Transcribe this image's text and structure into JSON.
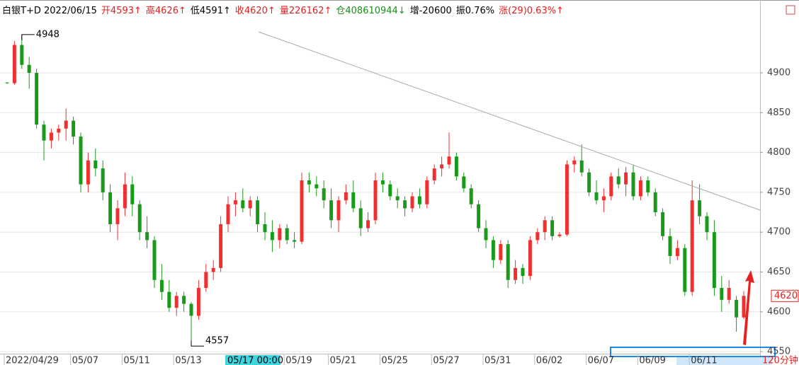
{
  "chart_data": {
    "type": "candlestick",
    "header": [
      {
        "text": "白银T+D 2022/06/15",
        "color": "#000000"
      },
      {
        "text": "开4593↑",
        "color": "#e02020"
      },
      {
        "text": "高4626↑",
        "color": "#e02020"
      },
      {
        "text": "低4591↑",
        "color": "#000000"
      },
      {
        "text": "收4620↑",
        "color": "#e02020"
      },
      {
        "text": "量226162↑",
        "color": "#e02020"
      },
      {
        "text": "仓408610944↓",
        "color": "#1a8f1a"
      },
      {
        "text": "增-20600",
        "color": "#000000"
      },
      {
        "text": "振0.76%",
        "color": "#000000"
      },
      {
        "text": "涨(29)0.63%↑",
        "color": "#e02020"
      }
    ],
    "cursor_label": "05/17 00:00",
    "period": "120分钟",
    "up_color": "#f03030",
    "down_color": "#1a9a1a",
    "ylim": [
      4543,
      4987
    ],
    "yticks": [
      4550,
      4600,
      4650,
      4700,
      4750,
      4800,
      4850,
      4900
    ],
    "grid": true,
    "high_label": 4948,
    "low_label": 4557,
    "last_price": 4620,
    "categories": [
      "2022/04/29",
      null,
      null,
      null,
      null,
      null,
      null,
      null,
      null,
      "05/07",
      null,
      null,
      null,
      null,
      null,
      null,
      "05/11",
      null,
      null,
      null,
      null,
      null,
      null,
      "05/13",
      null,
      null,
      null,
      null,
      null,
      null,
      null,
      null,
      null,
      null,
      null,
      null,
      null,
      null,
      "05/19",
      null,
      null,
      null,
      null,
      null,
      "05/21",
      null,
      null,
      null,
      null,
      null,
      null,
      "05/25",
      null,
      null,
      null,
      null,
      null,
      null,
      "05/27",
      null,
      null,
      null,
      null,
      null,
      null,
      "05/31",
      null,
      null,
      null,
      null,
      null,
      null,
      "06/02",
      null,
      null,
      null,
      null,
      null,
      null,
      "06/07",
      null,
      null,
      null,
      null,
      null,
      null,
      "06/09",
      null,
      null,
      null,
      null,
      null,
      null,
      "06/11",
      null,
      null,
      null,
      null,
      null,
      null,
      null
    ],
    "ohlc": [
      [
        4888,
        4888,
        4886,
        4887
      ],
      [
        4887,
        4940,
        4885,
        4935
      ],
      [
        4935,
        4948,
        4905,
        4910
      ],
      [
        4910,
        4920,
        4880,
        4900
      ],
      [
        4900,
        4905,
        4830,
        4835
      ],
      [
        4835,
        4840,
        4790,
        4815
      ],
      [
        4815,
        4830,
        4805,
        4825
      ],
      [
        4825,
        4835,
        4815,
        4830
      ],
      [
        4830,
        4855,
        4815,
        4840
      ],
      [
        4840,
        4845,
        4810,
        4820
      ],
      [
        4820,
        4825,
        4750,
        4760
      ],
      [
        4760,
        4800,
        4750,
        4790
      ],
      [
        4790,
        4805,
        4770,
        4780
      ],
      [
        4780,
        4790,
        4740,
        4750
      ],
      [
        4750,
        4760,
        4700,
        4710
      ],
      [
        4710,
        4740,
        4690,
        4730
      ],
      [
        4730,
        4775,
        4720,
        4760
      ],
      [
        4760,
        4770,
        4720,
        4735
      ],
      [
        4735,
        4740,
        4690,
        4700
      ],
      [
        4700,
        4720,
        4680,
        4690
      ],
      [
        4690,
        4695,
        4630,
        4640
      ],
      [
        4640,
        4660,
        4615,
        4625
      ],
      [
        4625,
        4640,
        4600,
        4605
      ],
      [
        4605,
        4625,
        4595,
        4620
      ],
      [
        4620,
        4625,
        4600,
        4610
      ],
      [
        4610,
        4612,
        4557,
        4595
      ],
      [
        4595,
        4640,
        4590,
        4630
      ],
      [
        4630,
        4660,
        4625,
        4650
      ],
      [
        4650,
        4665,
        4640,
        4655
      ],
      [
        4655,
        4720,
        4650,
        4710
      ],
      [
        4710,
        4745,
        4700,
        4735
      ],
      [
        4735,
        4750,
        4720,
        4740
      ],
      [
        4740,
        4755,
        4725,
        4730
      ],
      [
        4730,
        4745,
        4720,
        4740
      ],
      [
        4740,
        4745,
        4700,
        4710
      ],
      [
        4710,
        4725,
        4690,
        4700
      ],
      [
        4700,
        4715,
        4675,
        4690
      ],
      [
        4690,
        4710,
        4680,
        4705
      ],
      [
        4705,
        4710,
        4685,
        4690
      ],
      [
        4690,
        4700,
        4680,
        4688
      ],
      [
        4688,
        4775,
        4685,
        4765
      ],
      [
        4765,
        4775,
        4750,
        4760
      ],
      [
        4760,
        4770,
        4745,
        4755
      ],
      [
        4755,
        4765,
        4730,
        4740
      ],
      [
        4740,
        4755,
        4705,
        4715
      ],
      [
        4715,
        4745,
        4700,
        4740
      ],
      [
        4740,
        4760,
        4735,
        4750
      ],
      [
        4750,
        4765,
        4725,
        4730
      ],
      [
        4730,
        4740,
        4695,
        4705
      ],
      [
        4705,
        4725,
        4700,
        4715
      ],
      [
        4715,
        4775,
        4710,
        4765
      ],
      [
        4765,
        4775,
        4750,
        4760
      ],
      [
        4760,
        4765,
        4740,
        4745
      ],
      [
        4745,
        4755,
        4730,
        4740
      ],
      [
        4740,
        4745,
        4720,
        4730
      ],
      [
        4730,
        4750,
        4725,
        4745
      ],
      [
        4745,
        4755,
        4730,
        4735
      ],
      [
        4735,
        4770,
        4730,
        4765
      ],
      [
        4765,
        4785,
        4760,
        4780
      ],
      [
        4780,
        4795,
        4770,
        4785
      ],
      [
        4785,
        4825,
        4780,
        4795
      ],
      [
        4795,
        4800,
        4765,
        4770
      ],
      [
        4770,
        4775,
        4750,
        4755
      ],
      [
        4755,
        4760,
        4730,
        4735
      ],
      [
        4735,
        4740,
        4700,
        4705
      ],
      [
        4705,
        4715,
        4680,
        4690
      ],
      [
        4690,
        4695,
        4655,
        4665
      ],
      [
        4665,
        4690,
        4660,
        4685
      ],
      [
        4685,
        4690,
        4630,
        4640
      ],
      [
        4640,
        4665,
        4635,
        4655
      ],
      [
        4655,
        4660,
        4635,
        4645
      ],
      [
        4645,
        4695,
        4640,
        4690
      ],
      [
        4690,
        4705,
        4685,
        4700
      ],
      [
        4700,
        4720,
        4690,
        4715
      ],
      [
        4715,
        4720,
        4690,
        4695
      ],
      [
        4695,
        4700,
        4693,
        4697
      ],
      [
        4697,
        4790,
        4695,
        4785
      ],
      [
        4785,
        4795,
        4775,
        4790
      ],
      [
        4790,
        4810,
        4770,
        4775
      ],
      [
        4775,
        4780,
        4745,
        4750
      ],
      [
        4750,
        4765,
        4735,
        4740
      ],
      [
        4740,
        4755,
        4725,
        4745
      ],
      [
        4745,
        4775,
        4740,
        4770
      ],
      [
        4770,
        4780,
        4755,
        4760
      ],
      [
        4760,
        4782,
        4745,
        4775
      ],
      [
        4775,
        4785,
        4740,
        4745
      ],
      [
        4745,
        4770,
        4740,
        4765
      ],
      [
        4765,
        4770,
        4745,
        4750
      ],
      [
        4750,
        4755,
        4720,
        4725
      ],
      [
        4725,
        4730,
        4690,
        4695
      ],
      [
        4695,
        4705,
        4660,
        4670
      ],
      [
        4670,
        4690,
        4665,
        4680
      ],
      [
        4680,
        4685,
        4620,
        4625
      ],
      [
        4625,
        4765,
        4620,
        4740
      ],
      [
        4740,
        4760,
        4710,
        4720
      ],
      [
        4720,
        4725,
        4690,
        4700
      ],
      [
        4700,
        4715,
        4620,
        4630
      ],
      [
        4630,
        4645,
        4600,
        4615
      ],
      [
        4615,
        4640,
        4610,
        4630
      ],
      [
        4615,
        4620,
        4575,
        4593
      ],
      [
        4593,
        4626,
        4591,
        4620
      ]
    ]
  }
}
